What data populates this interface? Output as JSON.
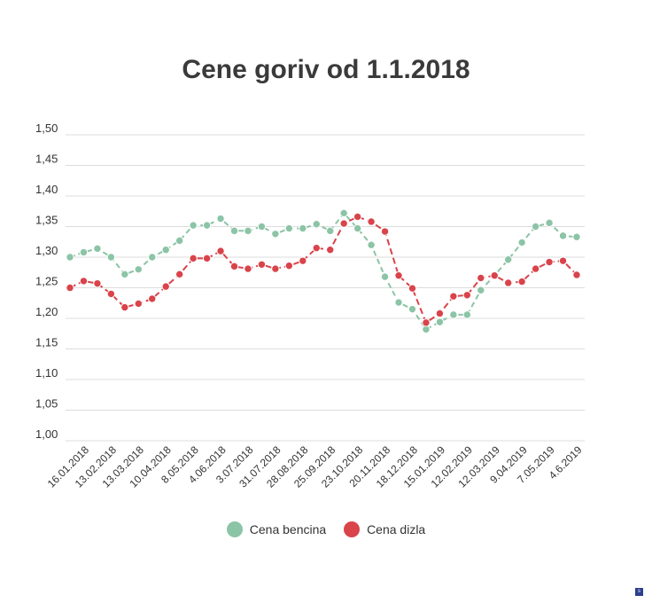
{
  "chart_data": {
    "type": "line",
    "title": "Cene goriv od 1.1.2018",
    "xlabel": "",
    "ylabel": "",
    "ylim": [
      1.0,
      1.5
    ],
    "yticks": [
      "1,00",
      "1,05",
      "1,10",
      "1,15",
      "1,20",
      "1,25",
      "1,30",
      "1,35",
      "1,40",
      "1,45",
      "1,50"
    ],
    "x_tick_labels": [
      "16.01.2018",
      "13.02.2018",
      "13.03.2018",
      "10.04.2018",
      "8.05.2018",
      "4.06.2018",
      "3.07.2018",
      "31.07.2018",
      "28.08.2018",
      "25.09.2018",
      "23.10.2018",
      "20.11.2018",
      "18.12.2018",
      "15.01.2019",
      "12.02.2019",
      "12.03.2019",
      "9.04.2019",
      "7.05.2019",
      "4.6.2019"
    ],
    "grid": true,
    "legend_position": "bottom",
    "series": [
      {
        "name": "Cena bencina",
        "color": "#8cc4a6",
        "values": [
          1.3,
          1.308,
          1.314,
          1.3,
          1.272,
          1.28,
          1.3,
          1.312,
          1.327,
          1.352,
          1.352,
          1.363,
          1.343,
          1.343,
          1.35,
          1.338,
          1.347,
          1.347,
          1.354,
          1.343,
          1.372,
          1.347,
          1.32,
          1.268,
          1.226,
          1.215,
          1.182,
          1.194,
          1.206,
          1.206,
          1.246,
          1.27,
          1.296,
          1.324,
          1.35,
          1.356,
          1.335,
          1.333
        ]
      },
      {
        "name": "Cena dizla",
        "color": "#d9434a",
        "values": [
          1.25,
          1.261,
          1.257,
          1.24,
          1.218,
          1.224,
          1.232,
          1.252,
          1.272,
          1.298,
          1.298,
          1.31,
          1.285,
          1.281,
          1.288,
          1.281,
          1.286,
          1.294,
          1.315,
          1.312,
          1.355,
          1.366,
          1.358,
          1.342,
          1.27,
          1.249,
          1.193,
          1.208,
          1.236,
          1.238,
          1.266,
          1.27,
          1.258,
          1.26,
          1.281,
          1.292,
          1.294,
          1.271
        ]
      }
    ]
  }
}
